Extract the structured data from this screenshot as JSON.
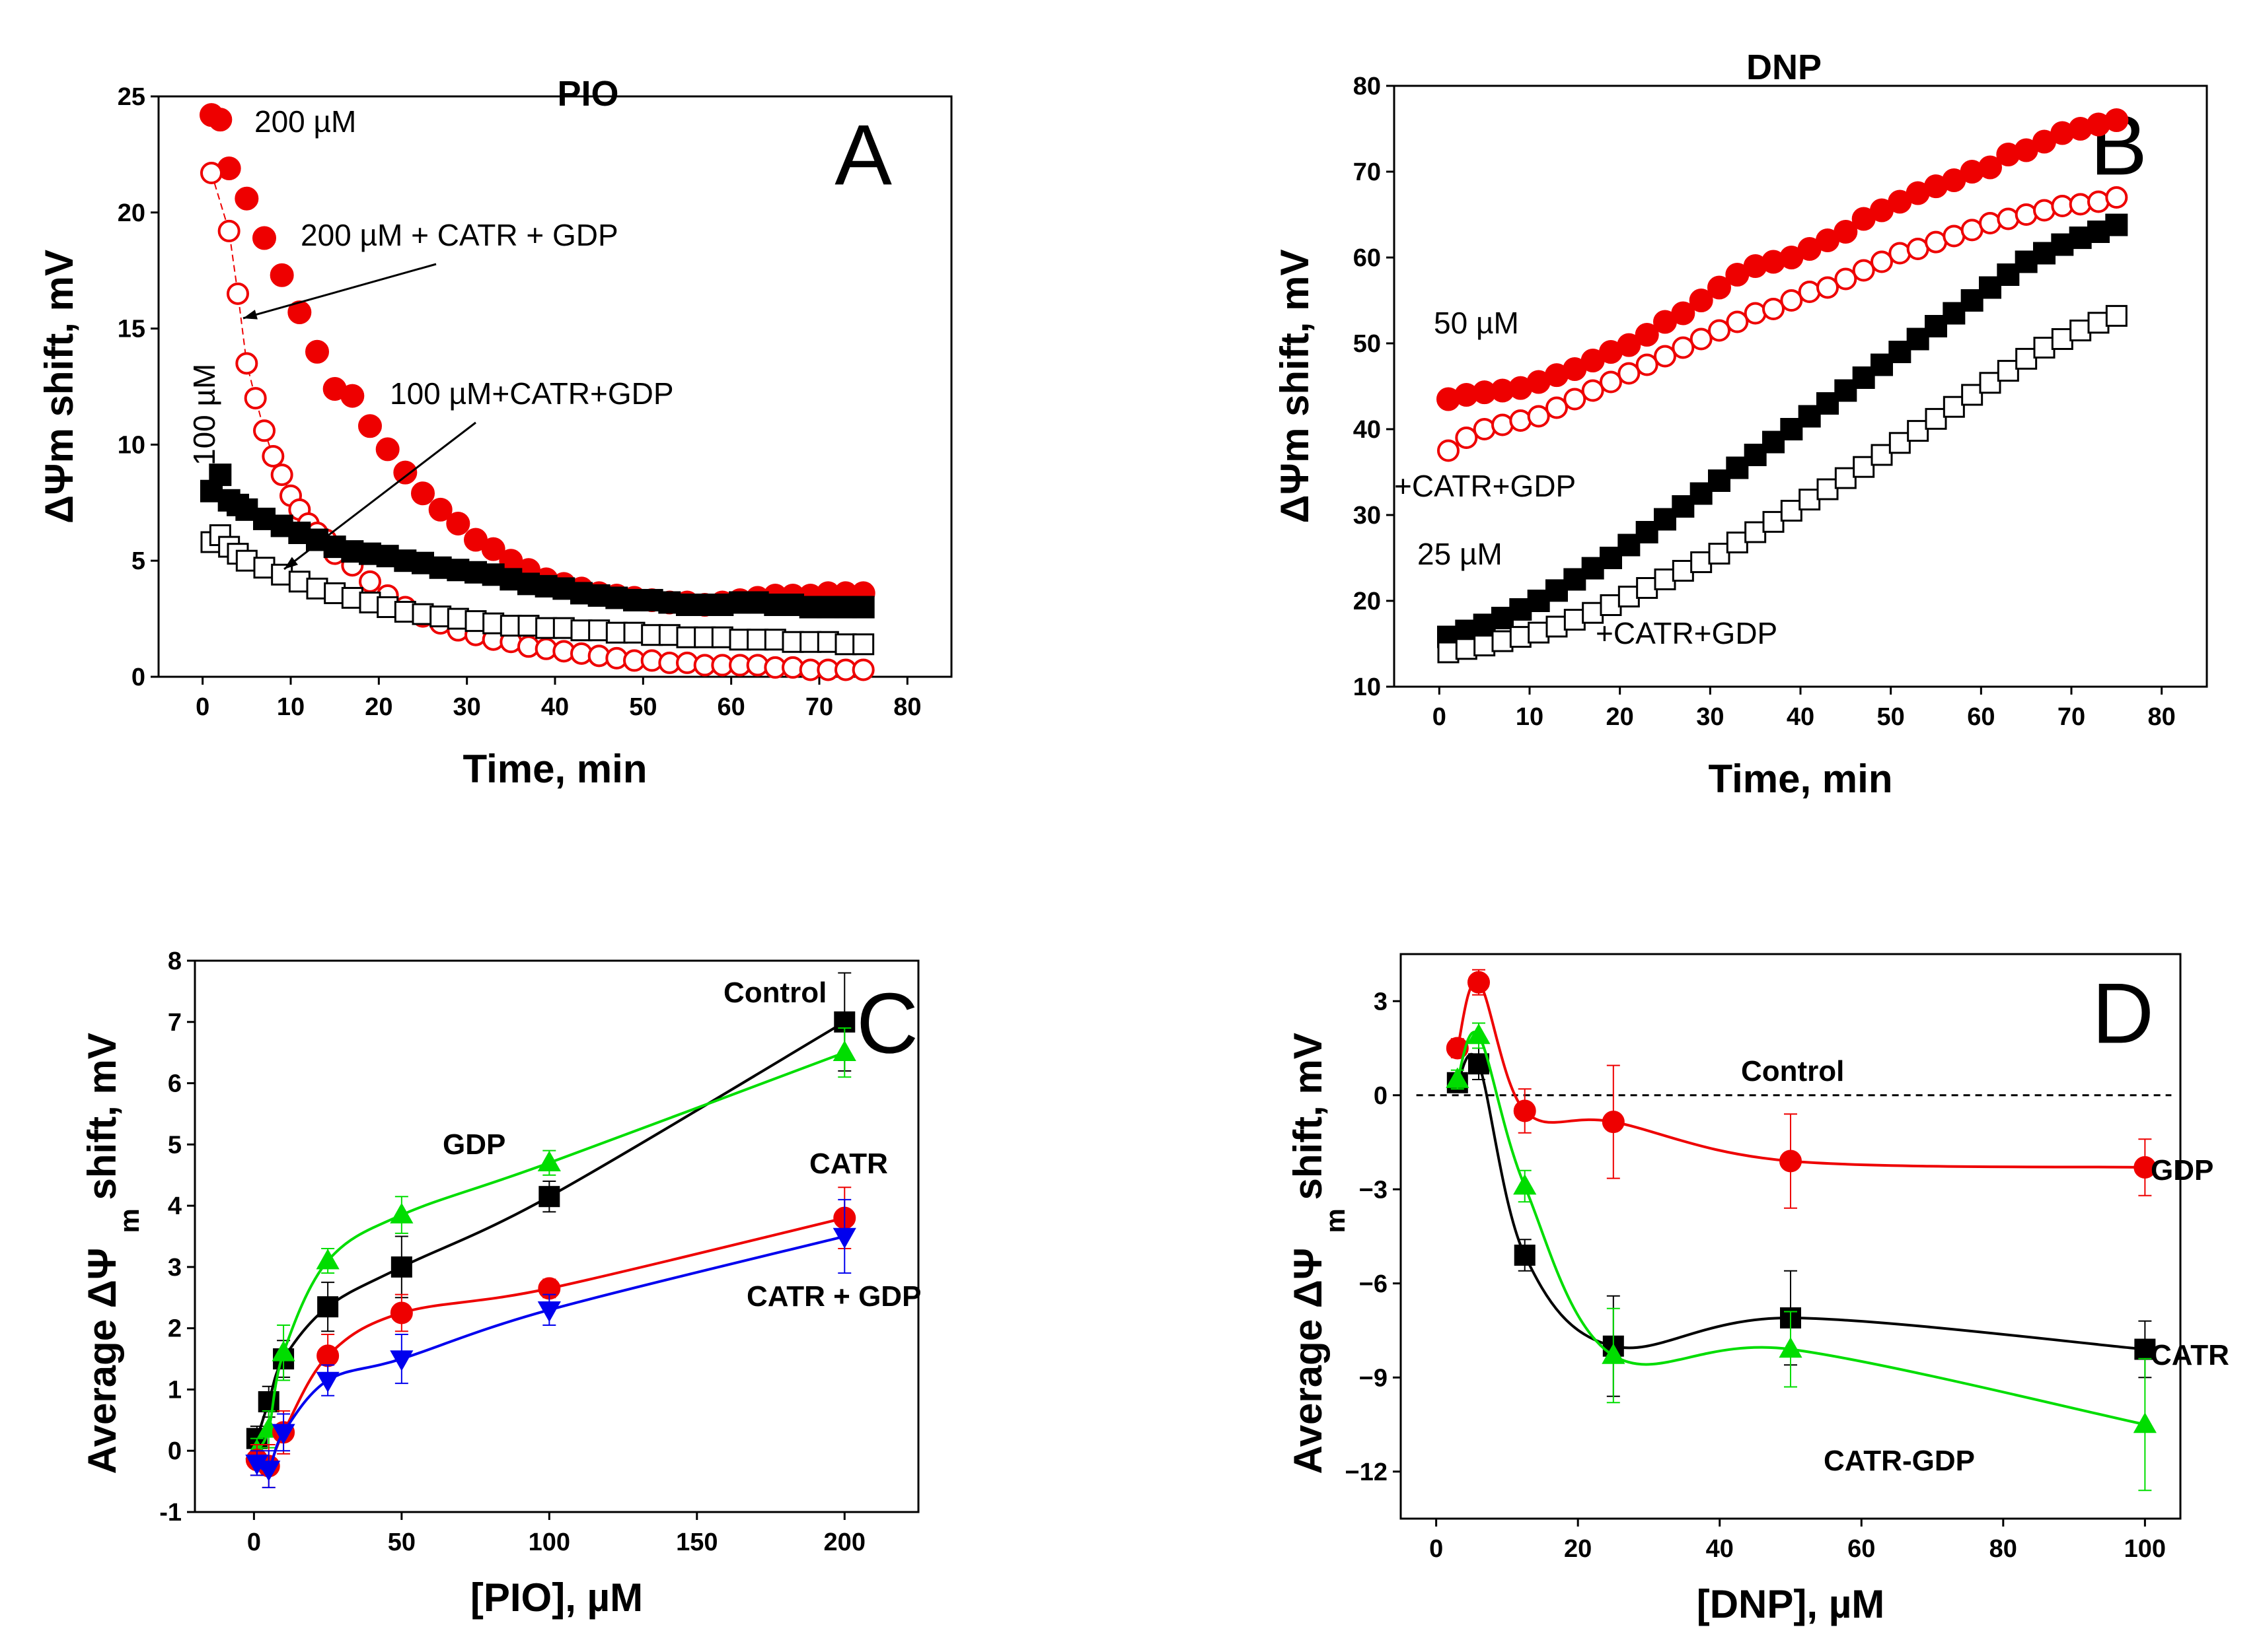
{
  "chart_data": [
    {
      "id": "A",
      "type": "scatter",
      "letter": "A",
      "title": "PIO",
      "xlabel": "Time, min",
      "ylabel": "ΔΨm shift, mV",
      "xlim": [
        -5,
        85
      ],
      "ylim": [
        0,
        25
      ],
      "xticks": [
        0,
        10,
        20,
        30,
        40,
        50,
        60,
        70,
        80
      ],
      "yticks": [
        0,
        5,
        10,
        15,
        20,
        25
      ],
      "colors": {
        "red": "#ee0000",
        "black": "#000000"
      },
      "series": [
        {
          "name": "200 µM",
          "marker": "circle-filled",
          "color": "#ee0000",
          "x": [
            1,
            2,
            3,
            5,
            7,
            9,
            11,
            13,
            15,
            17,
            19,
            21,
            23,
            25,
            27,
            29,
            31,
            33,
            35,
            37,
            39,
            41,
            43,
            45,
            47,
            49,
            51,
            53,
            55,
            57,
            59,
            61,
            63,
            65,
            67,
            69,
            71,
            73,
            75
          ],
          "y": [
            24.2,
            24,
            21.9,
            20.6,
            18.9,
            17.3,
            15.7,
            14,
            12.4,
            12.1,
            10.8,
            9.8,
            8.8,
            7.9,
            7.2,
            6.6,
            5.9,
            5.5,
            5,
            4.6,
            4.2,
            4,
            3.8,
            3.6,
            3.5,
            3.4,
            3.3,
            3.2,
            3.2,
            3.1,
            3.2,
            3.3,
            3.4,
            3.5,
            3.5,
            3.5,
            3.6,
            3.6,
            3.6
          ]
        },
        {
          "name": "200 µM + CATR + GDP",
          "marker": "circle-open",
          "color": "#ee0000",
          "x": [
            1,
            3,
            4,
            5,
            6,
            7,
            8,
            9,
            10,
            11,
            12,
            13,
            14,
            15,
            17,
            19,
            21,
            23,
            25,
            27,
            29,
            31,
            33,
            35,
            37,
            39,
            41,
            43,
            45,
            47,
            49,
            51,
            53,
            55,
            57,
            59,
            61,
            63,
            65,
            67,
            69,
            71,
            73,
            75
          ],
          "y": [
            21.7,
            19.2,
            16.5,
            13.5,
            12,
            10.6,
            9.5,
            8.7,
            7.8,
            7.2,
            6.6,
            6.2,
            5.9,
            5.3,
            4.8,
            4.1,
            3.5,
            3,
            2.6,
            2.3,
            2,
            1.8,
            1.6,
            1.5,
            1.3,
            1.2,
            1.1,
            1,
            0.9,
            0.8,
            0.7,
            0.7,
            0.6,
            0.6,
            0.5,
            0.5,
            0.5,
            0.5,
            0.4,
            0.4,
            0.3,
            0.3,
            0.3,
            0.3
          ]
        },
        {
          "name": "100 µM",
          "marker": "square-filled",
          "color": "#000000",
          "x": [
            1,
            2,
            3,
            4,
            5,
            7,
            9,
            11,
            13,
            15,
            17,
            19,
            21,
            23,
            25,
            27,
            29,
            31,
            33,
            35,
            37,
            39,
            41,
            43,
            45,
            47,
            49,
            51,
            53,
            55,
            57,
            59,
            61,
            63,
            65,
            67,
            69,
            71,
            73,
            75
          ],
          "y": [
            8,
            8.7,
            7.6,
            7.4,
            7.2,
            6.8,
            6.5,
            6.2,
            5.9,
            5.6,
            5.4,
            5.3,
            5.2,
            5,
            4.9,
            4.7,
            4.6,
            4.5,
            4.4,
            4.2,
            4,
            3.9,
            3.8,
            3.6,
            3.5,
            3.4,
            3.3,
            3.3,
            3.2,
            3.1,
            3.1,
            3.1,
            3.2,
            3.2,
            3.1,
            3.1,
            3,
            3,
            3,
            3
          ]
        },
        {
          "name": "100 µM+CATR+GDP",
          "marker": "square-open",
          "color": "#000000",
          "x": [
            1,
            2,
            3,
            4,
            5,
            7,
            9,
            11,
            13,
            15,
            17,
            19,
            21,
            23,
            25,
            27,
            29,
            31,
            33,
            35,
            37,
            39,
            41,
            43,
            45,
            47,
            49,
            51,
            53,
            55,
            57,
            59,
            61,
            63,
            65,
            67,
            69,
            71,
            73,
            75
          ],
          "y": [
            5.8,
            6.1,
            5.6,
            5.3,
            5,
            4.7,
            4.4,
            4.1,
            3.8,
            3.6,
            3.4,
            3.2,
            3,
            2.8,
            2.7,
            2.6,
            2.5,
            2.4,
            2.3,
            2.2,
            2.2,
            2.1,
            2.1,
            2,
            2,
            1.9,
            1.9,
            1.8,
            1.8,
            1.7,
            1.7,
            1.7,
            1.6,
            1.6,
            1.6,
            1.5,
            1.5,
            1.5,
            1.4,
            1.4
          ]
        }
      ],
      "annotations": [
        {
          "text": "200 µM"
        },
        {
          "text": "200 µM + CATR + GDP"
        },
        {
          "text": "100 µM"
        },
        {
          "text": "100 µM+CATR+GDP"
        }
      ]
    },
    {
      "id": "B",
      "type": "scatter",
      "letter": "B",
      "title": "DNP",
      "xlabel": "Time, min",
      "ylabel": "ΔΨm shift, mV",
      "xlim": [
        -5,
        85
      ],
      "ylim": [
        10,
        80
      ],
      "xticks": [
        0,
        10,
        20,
        30,
        40,
        50,
        60,
        70,
        80
      ],
      "yticks": [
        10,
        20,
        30,
        40,
        50,
        60,
        70,
        80
      ],
      "series": [
        {
          "name": "50 µM",
          "marker": "circle-filled",
          "color": "#ee0000",
          "x": [
            1,
            3,
            5,
            7,
            9,
            11,
            13,
            15,
            17,
            19,
            21,
            23,
            25,
            27,
            29,
            31,
            33,
            35,
            37,
            39,
            41,
            43,
            45,
            47,
            49,
            51,
            53,
            55,
            57,
            59,
            61,
            63,
            65,
            67,
            69,
            71,
            73,
            75
          ],
          "y": [
            43.5,
            44,
            44.3,
            44.5,
            44.8,
            45.5,
            46.3,
            47,
            48,
            49,
            49.8,
            51,
            52.5,
            53.5,
            55,
            56.5,
            58,
            59,
            59.5,
            60,
            61,
            62,
            63,
            64.5,
            65.5,
            66.5,
            67.5,
            68.3,
            69,
            70,
            70.5,
            72,
            72.5,
            73.5,
            74.5,
            75,
            75.5,
            76
          ]
        },
        {
          "name": "+CATR+GDP",
          "marker": "circle-open",
          "color": "#ee0000",
          "x": [
            1,
            3,
            5,
            7,
            9,
            11,
            13,
            15,
            17,
            19,
            21,
            23,
            25,
            27,
            29,
            31,
            33,
            35,
            37,
            39,
            41,
            43,
            45,
            47,
            49,
            51,
            53,
            55,
            57,
            59,
            61,
            63,
            65,
            67,
            69,
            71,
            73,
            75
          ],
          "y": [
            37.5,
            39,
            40,
            40.5,
            41,
            41.5,
            42.5,
            43.5,
            44.5,
            45.5,
            46.5,
            47.5,
            48.5,
            49.5,
            50.5,
            51.5,
            52.5,
            53.5,
            54,
            55,
            56,
            56.5,
            57.5,
            58.5,
            59.5,
            60.5,
            61,
            61.8,
            62.5,
            63.2,
            64,
            64.5,
            65,
            65.5,
            66,
            66.2,
            66.5,
            67
          ]
        },
        {
          "name": "25 µM",
          "marker": "square-filled",
          "color": "#000000",
          "x": [
            1,
            3,
            5,
            7,
            9,
            11,
            13,
            15,
            17,
            19,
            21,
            23,
            25,
            27,
            29,
            31,
            33,
            35,
            37,
            39,
            41,
            43,
            45,
            47,
            49,
            51,
            53,
            55,
            57,
            59,
            61,
            63,
            65,
            67,
            69,
            71,
            73,
            75
          ],
          "y": [
            15.8,
            16.5,
            17.2,
            18,
            19,
            20,
            21.2,
            22.5,
            23.8,
            25,
            26.5,
            28,
            29.5,
            31,
            32.5,
            34,
            35.5,
            37,
            38.5,
            40,
            41.5,
            43,
            44.5,
            46,
            47.5,
            49,
            50.5,
            52,
            53.5,
            55,
            56.5,
            58,
            59.5,
            60.5,
            61.5,
            62.3,
            63,
            63.8
          ]
        },
        {
          "name": "+CATR+GDP ",
          "marker": "square-open",
          "color": "#000000",
          "x": [
            1,
            3,
            5,
            7,
            9,
            11,
            13,
            15,
            17,
            19,
            21,
            23,
            25,
            27,
            29,
            31,
            33,
            35,
            37,
            39,
            41,
            43,
            45,
            47,
            49,
            51,
            53,
            55,
            57,
            59,
            61,
            63,
            65,
            67,
            69,
            71,
            73,
            75
          ],
          "y": [
            14,
            14.4,
            14.8,
            15.3,
            15.8,
            16.3,
            17,
            17.8,
            18.6,
            19.5,
            20.5,
            21.5,
            22.5,
            23.5,
            24.5,
            25.5,
            26.8,
            28,
            29.2,
            30.5,
            31.8,
            33,
            34.3,
            35.6,
            37,
            38.4,
            39.8,
            41.2,
            42.6,
            44,
            45.4,
            46.8,
            48.2,
            49.5,
            50.5,
            51.5,
            52.4,
            53.2
          ]
        }
      ],
      "annotations": [
        {
          "text": "50 µM"
        },
        {
          "text": "+CATR+GDP"
        },
        {
          "text": "25 µM"
        },
        {
          "text": "+CATR+GDP"
        }
      ]
    },
    {
      "id": "C",
      "type": "line",
      "letter": "C",
      "xlabel": "[PIO], µM",
      "ylabel_prefix": "Average ΔΨ",
      "ylabel_sub": "m",
      "ylabel_suffix": "shift, mV",
      "xlim": [
        -20,
        225
      ],
      "ylim": [
        -1,
        8
      ],
      "xticks": [
        0,
        50,
        100,
        150,
        200
      ],
      "yticks": [
        -1,
        0,
        1,
        2,
        3,
        4,
        5,
        6,
        7,
        8
      ],
      "series": [
        {
          "name": "Control",
          "marker": "square-filled",
          "color": "#000000",
          "x": [
            1,
            5,
            10,
            25,
            50,
            100,
            200
          ],
          "y": [
            0.2,
            0.8,
            1.5,
            2.35,
            3.0,
            4.15,
            7.0
          ],
          "err": [
            0.2,
            0.25,
            0.3,
            0.4,
            0.5,
            0.25,
            0.8
          ]
        },
        {
          "name": "GDP",
          "marker": "triangle-up",
          "color": "#00dd00",
          "x": [
            1,
            5,
            10,
            25,
            50,
            100,
            200
          ],
          "y": [
            0.0,
            0.35,
            1.6,
            3.1,
            3.85,
            4.7,
            6.5
          ],
          "err": [
            0.2,
            0.3,
            0.45,
            0.2,
            0.3,
            0.2,
            0.4
          ]
        },
        {
          "name": "CATR",
          "marker": "circle-filled",
          "color": "#ee0000",
          "x": [
            1,
            5,
            10,
            25,
            50,
            100,
            200
          ],
          "y": [
            -0.15,
            -0.25,
            0.3,
            1.55,
            2.25,
            2.65,
            3.8
          ],
          "err": [
            0.25,
            0.35,
            0.35,
            0.35,
            0.3,
            0.15,
            0.5
          ]
        },
        {
          "name": "CATR + GDP",
          "marker": "triangle-down",
          "color": "#0000ee",
          "x": [
            1,
            5,
            10,
            25,
            50,
            100,
            200
          ],
          "y": [
            -0.2,
            -0.3,
            0.3,
            1.15,
            1.5,
            2.3,
            3.5
          ],
          "err": [
            0.2,
            0.3,
            0.3,
            0.25,
            0.4,
            0.25,
            0.6
          ]
        }
      ],
      "labels": [
        {
          "text": "Control"
        },
        {
          "text": "GDP"
        },
        {
          "text": "CATR"
        },
        {
          "text": "CATR + GDP"
        }
      ]
    },
    {
      "id": "D",
      "type": "line",
      "letter": "D",
      "xlabel": "[DNP], µM",
      "ylabel_prefix": "Average ΔΨ",
      "ylabel_sub": "m",
      "ylabel_suffix": "shift, mV",
      "xlim": [
        -5,
        105
      ],
      "ylim": [
        -13.5,
        4.5
      ],
      "xticks": [
        0,
        20,
        40,
        60,
        80,
        100
      ],
      "yticks": [
        -12,
        -9,
        -6,
        -3,
        0,
        3
      ],
      "reference_line": {
        "y": 0,
        "style": "dashed",
        "label": "Control"
      },
      "series": [
        {
          "name": "GDP",
          "marker": "circle-filled",
          "color": "#ee0000",
          "x": [
            3,
            6,
            12.5,
            25,
            50,
            100
          ],
          "y": [
            1.5,
            3.6,
            -0.5,
            -0.85,
            -2.1,
            -2.3
          ],
          "err": [
            0.3,
            0.4,
            0.7,
            1.8,
            1.5,
            0.9
          ]
        },
        {
          "name": "CATR",
          "marker": "square-filled",
          "color": "#000000",
          "x": [
            3,
            6,
            12.5,
            25,
            50,
            100
          ],
          "y": [
            0.4,
            1.0,
            -5.1,
            -8.0,
            -7.1,
            -8.1
          ],
          "err": [
            0.3,
            0.5,
            0.5,
            1.6,
            1.5,
            0.9
          ]
        },
        {
          "name": "CATR-GDP",
          "marker": "triangle-up",
          "color": "#00dd00",
          "x": [
            3,
            6,
            12.5,
            25,
            50,
            100
          ],
          "y": [
            0.5,
            1.9,
            -2.9,
            -8.3,
            -8.1,
            -10.5
          ],
          "err": [
            0.3,
            0.4,
            0.5,
            1.5,
            1.2,
            2.1
          ]
        }
      ],
      "labels": [
        {
          "text": "Control"
        },
        {
          "text": "GDP"
        },
        {
          "text": "CATR"
        },
        {
          "text": "CATR-GDP"
        }
      ]
    }
  ]
}
